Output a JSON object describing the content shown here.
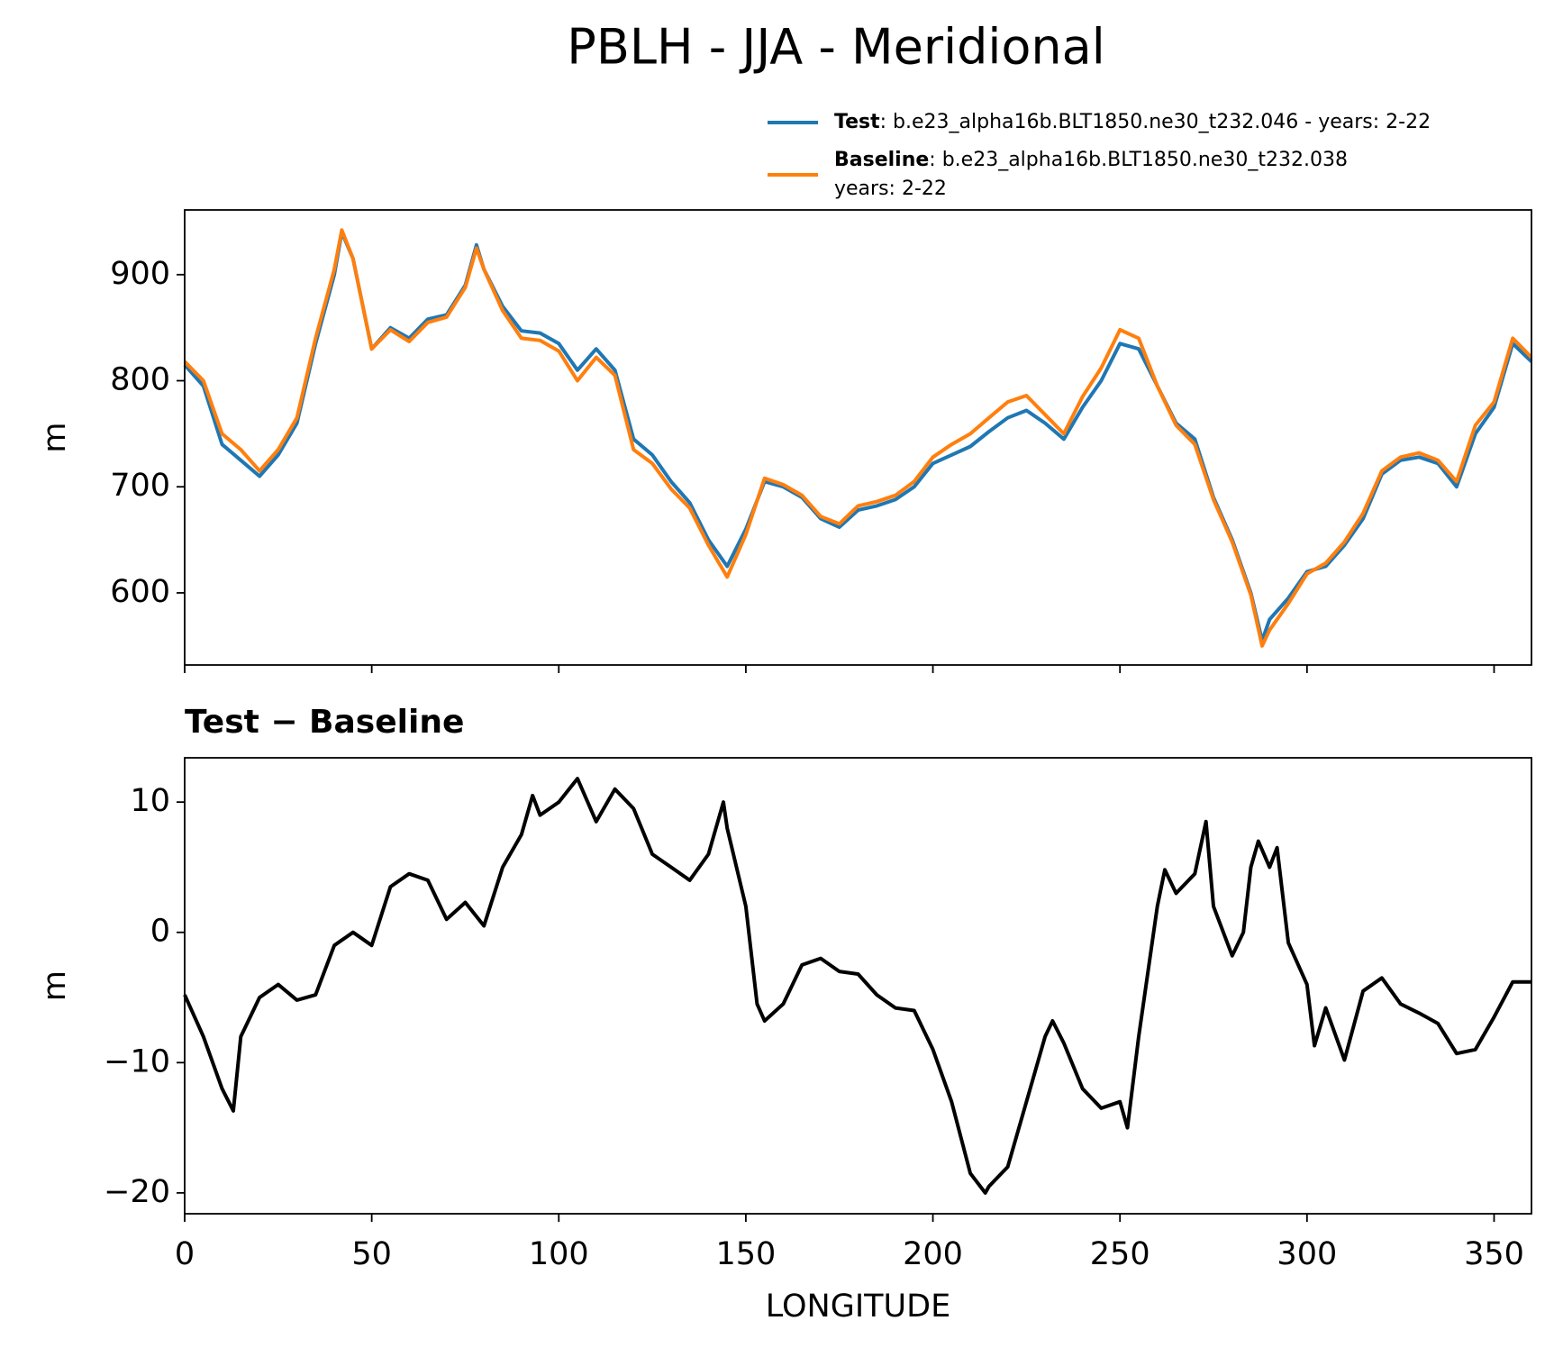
{
  "chart_data": [
    {
      "type": "line",
      "title": "PBLH - JJA - Meridional",
      "ylabel": "m",
      "grid": false,
      "legend": "upper right",
      "x": [
        0,
        5,
        10,
        15,
        20,
        25,
        30,
        35,
        40,
        42,
        45,
        50,
        55,
        60,
        65,
        70,
        75,
        78,
        80,
        85,
        90,
        95,
        100,
        105,
        110,
        115,
        120,
        125,
        130,
        135,
        140,
        145,
        150,
        155,
        160,
        165,
        170,
        175,
        180,
        185,
        190,
        195,
        200,
        205,
        210,
        215,
        220,
        225,
        230,
        235,
        240,
        245,
        250,
        255,
        260,
        265,
        270,
        275,
        280,
        285,
        288,
        290,
        295,
        300,
        305,
        310,
        315,
        320,
        325,
        330,
        335,
        340,
        345,
        350,
        355,
        360
      ],
      "series": [
        {
          "name": "Test",
          "label_lines": [
            ": b.e23_alpha16b.BLT1850.ne30_t232.046 - years: 2-22"
          ],
          "color": "#1f77b4",
          "values": [
            815,
            795,
            740,
            725,
            710,
            730,
            760,
            835,
            900,
            940,
            915,
            830,
            850,
            840,
            858,
            862,
            890,
            928,
            905,
            870,
            847,
            845,
            835,
            810,
            830,
            810,
            745,
            730,
            705,
            685,
            650,
            625,
            660,
            705,
            700,
            690,
            670,
            662,
            678,
            682,
            688,
            700,
            722,
            730,
            738,
            752,
            765,
            772,
            760,
            745,
            775,
            800,
            835,
            830,
            795,
            760,
            745,
            690,
            650,
            600,
            555,
            575,
            595,
            620,
            625,
            645,
            670,
            712,
            725,
            728,
            722,
            700,
            750,
            775,
            835,
            818
          ]
        },
        {
          "name": "Baseline",
          "label_lines": [
            ": b.e23_alpha16b.BLT1850.ne30_t232.038",
            "years: 2-22"
          ],
          "color": "#ff7f0e",
          "values": [
            818,
            800,
            750,
            735,
            715,
            735,
            765,
            840,
            905,
            942,
            915,
            830,
            848,
            837,
            855,
            860,
            888,
            925,
            905,
            866,
            840,
            838,
            828,
            800,
            822,
            805,
            735,
            722,
            698,
            680,
            645,
            615,
            655,
            708,
            702,
            692,
            672,
            665,
            682,
            686,
            692,
            705,
            728,
            740,
            750,
            765,
            780,
            786,
            768,
            750,
            785,
            812,
            848,
            840,
            795,
            758,
            740,
            688,
            648,
            598,
            550,
            565,
            590,
            618,
            628,
            648,
            675,
            715,
            728,
            732,
            725,
            705,
            758,
            780,
            840,
            822
          ]
        }
      ],
      "xlim": [
        0,
        360
      ],
      "xticks": [
        0,
        50,
        100,
        150,
        200,
        250,
        300,
        350
      ],
      "ylim": [
        532,
        961
      ],
      "yticks": [
        600,
        700,
        800,
        900
      ]
    },
    {
      "type": "line",
      "title": "Test − Baseline",
      "ylabel": "m",
      "xlabel": "LONGITUDE",
      "grid": false,
      "x": [
        0,
        5,
        10,
        13,
        15,
        20,
        25,
        30,
        35,
        40,
        45,
        50,
        55,
        60,
        65,
        70,
        75,
        80,
        85,
        90,
        93,
        95,
        100,
        105,
        110,
        115,
        120,
        125,
        130,
        135,
        140,
        144,
        145,
        150,
        153,
        155,
        160,
        165,
        170,
        175,
        180,
        185,
        190,
        195,
        200,
        205,
        210,
        214,
        215,
        220,
        225,
        230,
        232,
        235,
        240,
        245,
        250,
        252,
        255,
        260,
        262,
        265,
        270,
        273,
        275,
        280,
        283,
        285,
        287,
        290,
        292,
        295,
        300,
        302,
        305,
        310,
        315,
        320,
        325,
        330,
        335,
        340,
        345,
        350,
        355,
        360
      ],
      "series": [
        {
          "name": "Test − Baseline",
          "color": "#000000",
          "values": [
            -4.8,
            -8,
            -12,
            -13.7,
            -8,
            -5,
            -4,
            -5.2,
            -4.8,
            -1,
            0,
            -1,
            3.5,
            4.5,
            4,
            1,
            2.3,
            0.5,
            5,
            7.5,
            10.5,
            9,
            10,
            11.8,
            8.5,
            11,
            9.5,
            6,
            5,
            4,
            6,
            10,
            8,
            2,
            -5.5,
            -6.8,
            -5.5,
            -2.5,
            -2,
            -3,
            -3.2,
            -4.8,
            -5.8,
            -6,
            -9,
            -13,
            -18.5,
            -20,
            -19.5,
            -18,
            -13,
            -8,
            -6.8,
            -8.5,
            -12,
            -13.5,
            -13,
            -15,
            -8,
            2,
            4.8,
            3,
            4.5,
            8.5,
            2,
            -1.8,
            0,
            5,
            7,
            5,
            6.5,
            -0.8,
            -4,
            -8.7,
            -5.8,
            -9.8,
            -4.5,
            -3.5,
            -5.5,
            -6.2,
            -7,
            -9.3,
            -9,
            -6.5,
            -3.8,
            -3.8
          ]
        }
      ],
      "xlim": [
        0,
        360
      ],
      "xticks": [
        0,
        50,
        100,
        150,
        200,
        250,
        300,
        350
      ],
      "ylim": [
        -21.6,
        13.4
      ],
      "yticks": [
        {
          "value": -20,
          "label": "−20"
        },
        {
          "value": -10,
          "label": "−10"
        },
        0,
        10
      ]
    }
  ]
}
